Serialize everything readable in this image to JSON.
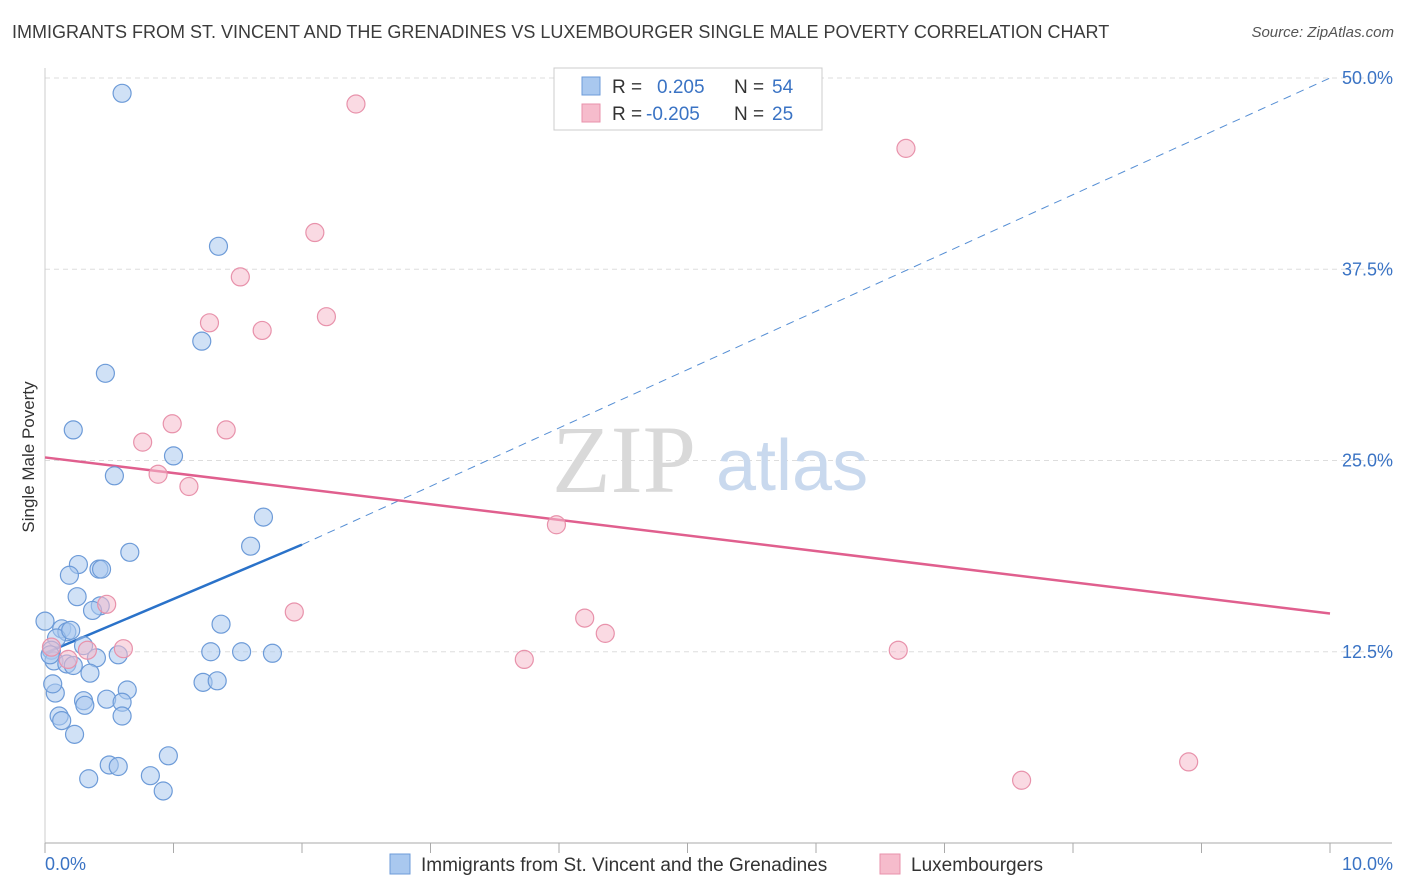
{
  "title": "IMMIGRANTS FROM ST. VINCENT AND THE GRENADINES VS LUXEMBOURGER SINGLE MALE POVERTY CORRELATION CHART",
  "source": "Source: ZipAtlas.com",
  "watermark": {
    "zip": "ZIP",
    "atlas": "atlas"
  },
  "colors": {
    "blue_fill": "#a9c8ef",
    "blue_stroke": "#6d9bd8",
    "blue_line": "#2a72c9",
    "pink_fill": "#f6bccc",
    "pink_stroke": "#e892ab",
    "pink_line": "#e05f8e",
    "grid": "#dddddd",
    "tick_text": "#3a73c4"
  },
  "legend": {
    "rows": [
      {
        "r_label": "R =",
        "r_value": "0.205",
        "n_label": "N =",
        "n_value": "54"
      },
      {
        "r_label": "R =",
        "r_value": "-0.205",
        "n_label": "N =",
        "n_value": "25"
      }
    ]
  },
  "chart_data": {
    "type": "scatter",
    "title": "IMMIGRANTS FROM ST. VINCENT AND THE GRENADINES VS LUXEMBOURGER SINGLE MALE POVERTY CORRELATION CHART",
    "xlabel": "",
    "ylabel": "Single Male Poverty",
    "xlim": [
      0,
      10
    ],
    "ylim": [
      0,
      50
    ],
    "x_tick_labels": [
      "0.0%",
      "10.0%"
    ],
    "y_tick_labels": [
      "12.5%",
      "25.0%",
      "37.5%",
      "50.0%"
    ],
    "y_ticks": [
      12.5,
      25.0,
      37.5,
      50.0
    ],
    "series": [
      {
        "name": "Immigrants from St. Vincent and the Grenadines",
        "color": "blue",
        "R": 0.205,
        "N": 54,
        "trend": {
          "x0": 0.0,
          "y0": 12.4,
          "x1": 2.0,
          "y1": 19.5,
          "dashed_to_x": 10.0,
          "dashed_to_y": 50.0
        },
        "points": [
          [
            0.6,
            49.0
          ],
          [
            1.35,
            39.0
          ],
          [
            1.22,
            32.8
          ],
          [
            0.47,
            30.7
          ],
          [
            0.22,
            27.0
          ],
          [
            1.0,
            25.3
          ],
          [
            0.54,
            24.0
          ],
          [
            1.7,
            21.3
          ],
          [
            1.6,
            19.4
          ],
          [
            0.66,
            19.0
          ],
          [
            0.26,
            18.2
          ],
          [
            0.42,
            17.9
          ],
          [
            0.44,
            17.9
          ],
          [
            0.19,
            17.5
          ],
          [
            0.25,
            16.1
          ],
          [
            0.43,
            15.5
          ],
          [
            0.37,
            15.2
          ],
          [
            1.37,
            14.3
          ],
          [
            0.0,
            14.5
          ],
          [
            0.13,
            14.0
          ],
          [
            0.17,
            13.8
          ],
          [
            0.09,
            13.4
          ],
          [
            0.3,
            12.9
          ],
          [
            0.05,
            12.6
          ],
          [
            1.29,
            12.5
          ],
          [
            1.53,
            12.5
          ],
          [
            1.77,
            12.4
          ],
          [
            0.57,
            12.3
          ],
          [
            0.4,
            12.1
          ],
          [
            0.07,
            11.9
          ],
          [
            0.17,
            11.7
          ],
          [
            0.22,
            11.6
          ],
          [
            0.35,
            11.1
          ],
          [
            1.23,
            10.5
          ],
          [
            1.34,
            10.6
          ],
          [
            0.64,
            10.0
          ],
          [
            0.08,
            9.8
          ],
          [
            0.3,
            9.3
          ],
          [
            0.48,
            9.4
          ],
          [
            0.6,
            9.2
          ],
          [
            0.31,
            9.0
          ],
          [
            0.6,
            8.3
          ],
          [
            0.11,
            8.3
          ],
          [
            0.13,
            8.0
          ],
          [
            0.23,
            7.1
          ],
          [
            0.96,
            5.7
          ],
          [
            0.5,
            5.1
          ],
          [
            0.57,
            5.0
          ],
          [
            0.82,
            4.4
          ],
          [
            0.34,
            4.2
          ],
          [
            0.92,
            3.4
          ],
          [
            0.04,
            12.3
          ],
          [
            0.06,
            10.4
          ],
          [
            0.2,
            13.9
          ]
        ]
      },
      {
        "name": "Luxembourgers",
        "color": "pink",
        "R": -0.205,
        "N": 25,
        "trend": {
          "x0": 0.0,
          "y0": 25.2,
          "x1": 10.0,
          "y1": 15.0
        },
        "points": [
          [
            2.42,
            48.3
          ],
          [
            6.7,
            45.4
          ],
          [
            2.1,
            39.9
          ],
          [
            1.52,
            37.0
          ],
          [
            2.19,
            34.4
          ],
          [
            1.28,
            34.0
          ],
          [
            1.69,
            33.5
          ],
          [
            0.99,
            27.4
          ],
          [
            1.41,
            27.0
          ],
          [
            0.76,
            26.2
          ],
          [
            0.88,
            24.1
          ],
          [
            1.12,
            23.3
          ],
          [
            3.98,
            20.8
          ],
          [
            1.94,
            15.1
          ],
          [
            0.48,
            15.6
          ],
          [
            4.2,
            14.7
          ],
          [
            4.36,
            13.7
          ],
          [
            0.61,
            12.7
          ],
          [
            0.33,
            12.6
          ],
          [
            3.73,
            12.0
          ],
          [
            6.64,
            12.6
          ],
          [
            8.9,
            5.3
          ],
          [
            7.6,
            4.1
          ],
          [
            0.05,
            12.8
          ],
          [
            0.18,
            12.0
          ]
        ]
      }
    ]
  }
}
